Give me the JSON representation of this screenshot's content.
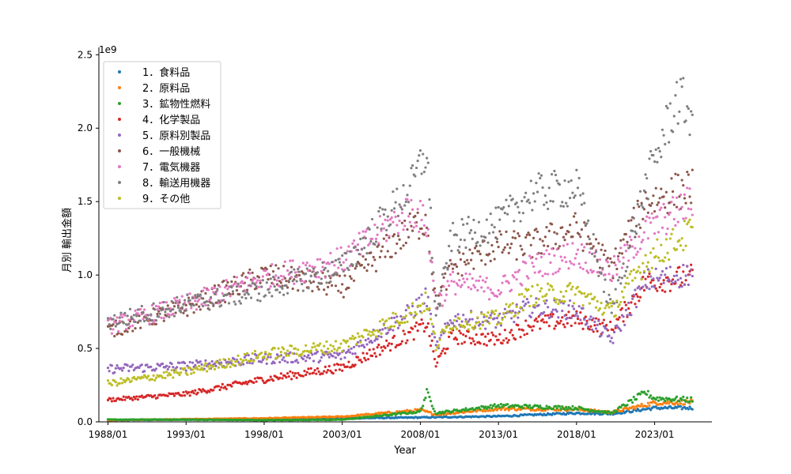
{
  "chart_data": {
    "type": "scatter",
    "title": "",
    "xlabel": "Year",
    "ylabel": "月別 輸出金額",
    "y_offset_text": "1e9",
    "xlim": [
      "1987/06",
      "2026/09"
    ],
    "ylim": [
      0,
      2.55
    ],
    "y_unit_note": "values in units of 1e9",
    "x_ticks": [
      "1988/01",
      "1993/01",
      "1998/01",
      "2003/01",
      "2008/01",
      "2013/01",
      "2018/01",
      "2023/01"
    ],
    "y_ticks": [
      "0.0",
      "0.5",
      "1.0",
      "1.5",
      "2.0",
      "2.5"
    ],
    "grid": false,
    "legend_position": "upper-left",
    "point_frequency": "monthly",
    "x_start": "1988/01",
    "x_end": "2025/06",
    "series": [
      {
        "name": "1．食料品",
        "color": "#1f77b4",
        "x": [
          "1988/01",
          "1993/01",
          "1998/01",
          "2003/01",
          "2008/01",
          "2013/01",
          "2018/01",
          "2020/04",
          "2023/01",
          "2025/06"
        ],
        "values": [
          0.012,
          0.016,
          0.02,
          0.024,
          0.03,
          0.038,
          0.06,
          0.055,
          0.095,
          0.095
        ]
      },
      {
        "name": "2．原料品",
        "color": "#ff7f0e",
        "x": [
          "1988/01",
          "1993/01",
          "1998/01",
          "2003/01",
          "2008/01",
          "2009/01",
          "2013/01",
          "2018/01",
          "2020/04",
          "2023/01",
          "2025/06"
        ],
        "values": [
          0.012,
          0.018,
          0.024,
          0.035,
          0.08,
          0.05,
          0.09,
          0.085,
          0.065,
          0.13,
          0.135
        ]
      },
      {
        "name": "3．鉱物性燃料",
        "color": "#2ca02c",
        "x": [
          "1988/01",
          "1993/01",
          "1998/01",
          "2003/01",
          "2008/01",
          "2008/06",
          "2009/01",
          "2013/01",
          "2018/01",
          "2020/04",
          "2022/06",
          "2023/01",
          "2025/06"
        ],
        "values": [
          0.015,
          0.015,
          0.012,
          0.015,
          0.07,
          0.2,
          0.06,
          0.11,
          0.095,
          0.06,
          0.2,
          0.16,
          0.15
        ]
      },
      {
        "name": "4．化学製品",
        "color": "#d62728",
        "x": [
          "1988/01",
          "1993/01",
          "1998/01",
          "2003/01",
          "2007/06",
          "2008/06",
          "2009/01",
          "2010/01",
          "2013/01",
          "2015/01",
          "2018/01",
          "2020/04",
          "2022/06",
          "2025/06"
        ],
        "values": [
          0.15,
          0.19,
          0.29,
          0.37,
          0.6,
          0.67,
          0.39,
          0.58,
          0.56,
          0.66,
          0.7,
          0.63,
          0.95,
          0.99
        ]
      },
      {
        "name": "5．原料別製品",
        "color": "#9467bd",
        "x": [
          "1988/01",
          "1993/01",
          "1998/01",
          "2003/01",
          "2007/06",
          "2008/06",
          "2009/01",
          "2010/01",
          "2013/01",
          "2015/01",
          "2018/01",
          "2020/04",
          "2022/06",
          "2025/06"
        ],
        "values": [
          0.36,
          0.38,
          0.43,
          0.45,
          0.75,
          0.85,
          0.5,
          0.7,
          0.69,
          0.78,
          0.76,
          0.56,
          0.96,
          1.01
        ]
      },
      {
        "name": "6．一般機械",
        "color": "#8c564b",
        "x": [
          "1988/01",
          "1993/01",
          "1998/01",
          "2003/01",
          "2007/06",
          "2008/06",
          "2009/01",
          "2010/01",
          "2013/01",
          "2015/01",
          "2018/01",
          "2020/04",
          "2022/06",
          "2025/06"
        ],
        "values": [
          0.62,
          0.78,
          1.0,
          0.92,
          1.32,
          1.38,
          0.8,
          1.05,
          1.2,
          1.2,
          1.32,
          1.05,
          1.5,
          1.6
        ]
      },
      {
        "name": "7．電気機器",
        "color": "#e377c2",
        "x": [
          "1988/01",
          "1993/01",
          "1998/01",
          "2003/01",
          "2007/06",
          "2008/06",
          "2009/01",
          "2010/01",
          "2013/01",
          "2015/01",
          "2018/01",
          "2020/04",
          "2022/06",
          "2025/06"
        ],
        "values": [
          0.65,
          0.8,
          0.98,
          1.1,
          1.45,
          1.35,
          0.8,
          0.95,
          0.9,
          1.05,
          1.15,
          1.02,
          1.3,
          1.5
        ]
      },
      {
        "name": "8．輸送用機器",
        "color": "#7f7f7f",
        "x": [
          "1988/01",
          "1993/01",
          "1998/01",
          "2003/01",
          "2007/06",
          "2008/06",
          "2009/01",
          "2010/01",
          "2013/01",
          "2015/01",
          "2018/01",
          "2020/04",
          "2022/06",
          "2024/06",
          "2025/06"
        ],
        "values": [
          0.68,
          0.8,
          0.9,
          1.05,
          1.6,
          1.85,
          0.7,
          1.25,
          1.35,
          1.55,
          1.6,
          0.75,
          1.6,
          2.2,
          2.1
        ]
      },
      {
        "name": "9．その他",
        "color": "#bcbd22",
        "x": [
          "1988/01",
          "1993/01",
          "1998/01",
          "2003/01",
          "2007/06",
          "2008/06",
          "2009/01",
          "2010/01",
          "2013/01",
          "2015/01",
          "2018/01",
          "2020/04",
          "2022/06",
          "2025/06"
        ],
        "values": [
          0.26,
          0.34,
          0.46,
          0.52,
          0.75,
          0.82,
          0.52,
          0.68,
          0.7,
          0.86,
          0.88,
          0.75,
          1.1,
          1.3
        ]
      }
    ]
  }
}
